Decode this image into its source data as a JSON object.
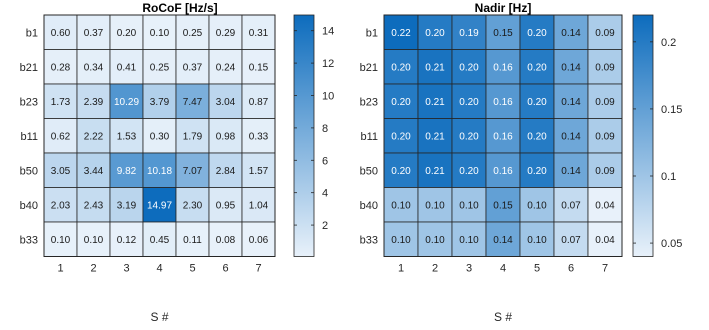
{
  "chart_data": [
    {
      "type": "heatmap",
      "title": "RoCoF [Hz/s]",
      "xlabel": "S #",
      "x_categories": [
        "1",
        "2",
        "3",
        "4",
        "5",
        "6",
        "7"
      ],
      "y_categories": [
        "b1",
        "b21",
        "b23",
        "b11",
        "b50",
        "b40",
        "b33"
      ],
      "values": [
        [
          0.6,
          0.37,
          0.2,
          0.1,
          0.25,
          0.29,
          0.31
        ],
        [
          0.28,
          0.34,
          0.41,
          0.25,
          0.37,
          0.24,
          0.15
        ],
        [
          1.73,
          2.39,
          10.29,
          3.79,
          7.47,
          3.04,
          0.87
        ],
        [
          0.62,
          2.22,
          1.53,
          0.3,
          1.79,
          0.98,
          0.33
        ],
        [
          3.05,
          3.44,
          9.82,
          10.18,
          7.07,
          2.84,
          1.57
        ],
        [
          2.03,
          2.43,
          3.19,
          14.97,
          2.3,
          0.95,
          1.04
        ],
        [
          0.1,
          0.1,
          0.12,
          0.45,
          0.11,
          0.08,
          0.06
        ]
      ],
      "colorbar": {
        "min": 0.06,
        "max": 14.97,
        "ticks": [
          2,
          4,
          6,
          8,
          10,
          12,
          14
        ]
      },
      "colors": {
        "low": "#e8f1fa",
        "high": "#0d6cbd",
        "text_dark": "#1a1a1a",
        "text_light": "#ffffff"
      }
    },
    {
      "type": "heatmap",
      "title": "Nadir [Hz]",
      "xlabel": "S #",
      "x_categories": [
        "1",
        "2",
        "3",
        "4",
        "5",
        "6",
        "7"
      ],
      "y_categories": [
        "b1",
        "b21",
        "b23",
        "b11",
        "b50",
        "b40",
        "b33"
      ],
      "values": [
        [
          0.22,
          0.2,
          0.19,
          0.15,
          0.2,
          0.14,
          0.09
        ],
        [
          0.2,
          0.21,
          0.2,
          0.16,
          0.2,
          0.14,
          0.09
        ],
        [
          0.2,
          0.21,
          0.2,
          0.16,
          0.2,
          0.14,
          0.09
        ],
        [
          0.2,
          0.21,
          0.2,
          0.16,
          0.2,
          0.14,
          0.09
        ],
        [
          0.2,
          0.21,
          0.2,
          0.16,
          0.2,
          0.14,
          0.09
        ],
        [
          0.1,
          0.1,
          0.1,
          0.15,
          0.1,
          0.07,
          0.04
        ],
        [
          0.1,
          0.1,
          0.1,
          0.14,
          0.1,
          0.07,
          0.04
        ]
      ],
      "colorbar": {
        "min": 0.04,
        "max": 0.22,
        "ticks": [
          0.05,
          0.1,
          0.15,
          0.2
        ]
      },
      "colors": {
        "low": "#e8f1fa",
        "high": "#0d6cbd",
        "text_dark": "#1a1a1a",
        "text_light": "#ffffff"
      }
    }
  ]
}
